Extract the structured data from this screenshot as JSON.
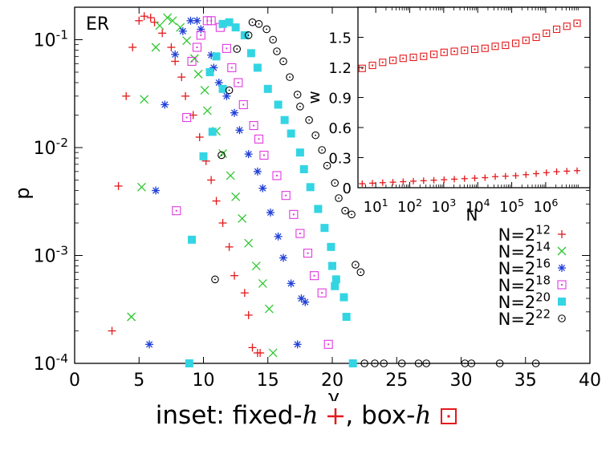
{
  "chart_data": [
    {
      "type": "scatter",
      "title": "ER",
      "xlabel": "γ",
      "ylabel": "p",
      "xlim": [
        0,
        40
      ],
      "ylim": [
        0.0001,
        0.2
      ],
      "y_scale": "log",
      "x_ticks": [
        "0",
        "5",
        "10",
        "15",
        "20",
        "25",
        "30",
        "35",
        "40"
      ],
      "y_ticks": [
        {
          "mantissa": "10",
          "exp": "-1"
        },
        {
          "mantissa": "10",
          "exp": "-2"
        },
        {
          "mantissa": "10",
          "exp": "-3"
        },
        {
          "mantissa": "10",
          "exp": "-4"
        }
      ],
      "legend_position": "bottom-right",
      "series": [
        {
          "name": "N=2^12",
          "label_base": "N=2",
          "label_exp": "12",
          "color": "#e41a1c",
          "marker": "plus",
          "points": [
            [
              2.9,
              0.0002
            ],
            [
              3.4,
              0.0044
            ],
            [
              4.0,
              0.03
            ],
            [
              4.5,
              0.085
            ],
            [
              5.0,
              0.15
            ],
            [
              5.4,
              0.165
            ],
            [
              5.9,
              0.16
            ],
            [
              6.2,
              0.145
            ],
            [
              6.8,
              0.115
            ],
            [
              7.5,
              0.085
            ],
            [
              7.8,
              0.063
            ],
            [
              8.3,
              0.045
            ],
            [
              8.6,
              0.03
            ],
            [
              9.2,
              0.02
            ],
            [
              9.7,
              0.0125
            ],
            [
              10.2,
              0.0075
            ],
            [
              10.6,
              0.005
            ],
            [
              11.0,
              0.0032
            ],
            [
              11.5,
              0.002
            ],
            [
              12.0,
              0.0012
            ],
            [
              12.4,
              0.00065
            ],
            [
              13.2,
              0.00045
            ],
            [
              13.5,
              0.00028
            ],
            [
              13.8,
              0.00014
            ],
            [
              14.2,
              0.000125
            ],
            [
              14.4,
              0.000125
            ]
          ]
        },
        {
          "name": "N=2^14",
          "label_base": "N=2",
          "label_exp": "14",
          "color": "#2ec82e",
          "marker": "cross",
          "points": [
            [
              4.4,
              0.00027
            ],
            [
              5.2,
              0.0043
            ],
            [
              5.4,
              0.028
            ],
            [
              6.3,
              0.085
            ],
            [
              6.6,
              0.135
            ],
            [
              7.2,
              0.16
            ],
            [
              7.6,
              0.15
            ],
            [
              8.2,
              0.13
            ],
            [
              8.7,
              0.098
            ],
            [
              9.3,
              0.067
            ],
            [
              9.6,
              0.048
            ],
            [
              10.1,
              0.034
            ],
            [
              10.3,
              0.022
            ],
            [
              11.0,
              0.0142
            ],
            [
              11.5,
              0.0088
            ],
            [
              12.1,
              0.0055
            ],
            [
              12.5,
              0.0035
            ],
            [
              13.0,
              0.0022
            ],
            [
              13.5,
              0.0013
            ],
            [
              14.1,
              0.0008
            ],
            [
              14.6,
              0.00055
            ],
            [
              15.1,
              0.00032
            ],
            [
              15.4,
              0.000125
            ]
          ]
        },
        {
          "name": "N=2^16",
          "label_base": "N=2",
          "label_exp": "16",
          "color": "#1f3fd8",
          "marker": "star",
          "points": [
            [
              5.8,
              0.00015
            ],
            [
              6.3,
              0.004
            ],
            [
              7.0,
              0.025
            ],
            [
              7.8,
              0.073
            ],
            [
              8.4,
              0.12
            ],
            [
              9.0,
              0.15
            ],
            [
              9.5,
              0.15
            ],
            [
              9.8,
              0.125
            ],
            [
              10.6,
              0.072
            ],
            [
              10.8,
              0.055
            ],
            [
              11.2,
              0.04
            ],
            [
              11.8,
              0.03
            ],
            [
              12.4,
              0.021
            ],
            [
              12.8,
              0.0145
            ],
            [
              13.5,
              0.0087
            ],
            [
              14.2,
              0.006
            ],
            [
              14.6,
              0.0042
            ],
            [
              15.2,
              0.0025
            ],
            [
              15.8,
              0.0015
            ],
            [
              16.2,
              0.00095
            ],
            [
              16.8,
              0.00055
            ],
            [
              17.3,
              0.00015
            ],
            [
              17.6,
              0.0004
            ],
            [
              17.9,
              0.00037
            ]
          ]
        },
        {
          "name": "N=2^18",
          "label_base": "N=2",
          "label_exp": "18",
          "color": "#e03ae0",
          "marker": "box",
          "points": [
            [
              7.9,
              0.0026
            ],
            [
              8.7,
              0.019
            ],
            [
              9.1,
              0.063
            ],
            [
              9.5,
              0.085
            ],
            [
              9.8,
              0.11
            ],
            [
              10.3,
              0.15
            ],
            [
              10.6,
              0.15
            ],
            [
              11.3,
              0.13
            ],
            [
              11.8,
              0.083
            ],
            [
              12.2,
              0.055
            ],
            [
              12.7,
              0.04
            ],
            [
              13.1,
              0.025
            ],
            [
              13.9,
              0.016
            ],
            [
              14.3,
              0.012
            ],
            [
              14.7,
              0.0085
            ],
            [
              15.7,
              0.0055
            ],
            [
              16.4,
              0.0036
            ],
            [
              17.0,
              0.0024
            ],
            [
              17.5,
              0.0016
            ],
            [
              18.1,
              0.00105
            ],
            [
              18.6,
              0.00065
            ],
            [
              19.2,
              0.00045
            ],
            [
              19.7,
              0.00015
            ]
          ]
        },
        {
          "name": "N=2^20",
          "label_base": "N=2",
          "label_exp": "20",
          "color": "#33d5e3",
          "marker": "square",
          "points": [
            [
              8.9,
              0.0001
            ],
            [
              9.1,
              0.0014
            ],
            [
              10.0,
              0.0083
            ],
            [
              10.7,
              0.014
            ],
            [
              11.5,
              0.035
            ],
            [
              10.5,
              0.05
            ],
            [
              11.0,
              0.07
            ],
            [
              11.5,
              0.14
            ],
            [
              12.0,
              0.145
            ],
            [
              12.5,
              0.13
            ],
            [
              13.2,
              0.11
            ],
            [
              13.7,
              0.075
            ],
            [
              14.2,
              0.055
            ],
            [
              15.0,
              0.035
            ],
            [
              15.8,
              0.025
            ],
            [
              16.3,
              0.018
            ],
            [
              16.8,
              0.0135
            ],
            [
              17.5,
              0.009
            ],
            [
              17.8,
              0.0063
            ],
            [
              18.3,
              0.0043
            ],
            [
              18.9,
              0.0027
            ],
            [
              19.4,
              0.0018
            ],
            [
              19.9,
              0.0012
            ],
            [
              20.0,
              0.0008
            ],
            [
              20.3,
              0.0006
            ],
            [
              20.2,
              0.00052
            ],
            [
              20.9,
              0.00041
            ],
            [
              21.1,
              0.00027
            ],
            [
              21.6,
              0.0001
            ]
          ]
        },
        {
          "name": "N=2^22",
          "label_base": "N=2",
          "label_exp": "22",
          "color": "#000000",
          "marker": "circle",
          "points": [
            [
              10.9,
              0.0006
            ],
            [
              11.4,
              0.0085
            ],
            [
              12.0,
              0.034
            ],
            [
              12.6,
              0.082
            ],
            [
              13.5,
              0.11
            ],
            [
              13.8,
              0.145
            ],
            [
              14.3,
              0.14
            ],
            [
              14.9,
              0.125
            ],
            [
              15.4,
              0.1
            ],
            [
              15.7,
              0.078
            ],
            [
              16.2,
              0.063
            ],
            [
              16.7,
              0.045
            ],
            [
              17.3,
              0.031
            ],
            [
              17.5,
              0.024
            ],
            [
              18.2,
              0.018
            ],
            [
              18.7,
              0.013
            ],
            [
              19.2,
              0.0095
            ],
            [
              19.6,
              0.0068
            ],
            [
              20.2,
              0.0047
            ],
            [
              20.5,
              0.0034
            ],
            [
              21.0,
              0.0026
            ],
            [
              21.5,
              0.0024
            ],
            [
              21.8,
              0.00082
            ],
            [
              22.2,
              0.0007
            ],
            [
              22.5,
              0.0001
            ],
            [
              23.3,
              0.0001
            ],
            [
              24.0,
              0.0001
            ],
            [
              25.4,
              0.0001
            ],
            [
              26.7,
              0.0001
            ],
            [
              27.3,
              0.0001
            ],
            [
              30.3,
              0.0001
            ],
            [
              30.8,
              0.0001
            ],
            [
              33.0,
              0.0001
            ],
            [
              35.8,
              0.0001
            ]
          ]
        }
      ]
    },
    {
      "type": "scatter",
      "title": "",
      "xlabel": "N",
      "ylabel": "w",
      "xlim": [
        3,
        20000000
      ],
      "ylim": [
        0,
        1.8
      ],
      "x_scale": "log",
      "y_ticks": [
        "0",
        "0.3",
        "0.6",
        "0.9",
        "1.2",
        "1.5"
      ],
      "x_ticks": [
        {
          "mantissa": "10",
          "exp": "1"
        },
        {
          "mantissa": "10",
          "exp": "2"
        },
        {
          "mantissa": "10",
          "exp": "3"
        },
        {
          "mantissa": "10",
          "exp": "4"
        },
        {
          "mantissa": "10",
          "exp": "5"
        },
        {
          "mantissa": "10",
          "exp": "6"
        }
      ],
      "series": [
        {
          "color": "#e41a1c",
          "marker": "plus",
          "points": [
            [
              4,
              0.04
            ],
            [
              8,
              0.045
            ],
            [
              16,
              0.05
            ],
            [
              32,
              0.055
            ],
            [
              64,
              0.06
            ],
            [
              128,
              0.065
            ],
            [
              256,
              0.07
            ],
            [
              512,
              0.075
            ],
            [
              1024,
              0.08
            ],
            [
              2048,
              0.085
            ],
            [
              4096,
              0.09
            ],
            [
              8192,
              0.095
            ],
            [
              16384,
              0.1
            ],
            [
              32768,
              0.11
            ],
            [
              65536,
              0.115
            ],
            [
              131072,
              0.12
            ],
            [
              262144,
              0.13
            ],
            [
              524288,
              0.14
            ],
            [
              1048576,
              0.15
            ],
            [
              2097152,
              0.16
            ],
            [
              4194304,
              0.165
            ],
            [
              8388608,
              0.17
            ]
          ]
        },
        {
          "color": "#e41a1c",
          "marker": "box",
          "points": [
            [
              4,
              1.19
            ],
            [
              8,
              1.22
            ],
            [
              16,
              1.25
            ],
            [
              32,
              1.27
            ],
            [
              64,
              1.29
            ],
            [
              128,
              1.3
            ],
            [
              256,
              1.31
            ],
            [
              512,
              1.33
            ],
            [
              1024,
              1.35
            ],
            [
              2048,
              1.36
            ],
            [
              4096,
              1.37
            ],
            [
              8192,
              1.38
            ],
            [
              16384,
              1.39
            ],
            [
              32768,
              1.41
            ],
            [
              65536,
              1.42
            ],
            [
              131072,
              1.44
            ],
            [
              262144,
              1.47
            ],
            [
              524288,
              1.5
            ],
            [
              1048576,
              1.54
            ],
            [
              2097152,
              1.58
            ],
            [
              4194304,
              1.61
            ],
            [
              8388608,
              1.64
            ]
          ]
        }
      ]
    }
  ],
  "caption": {
    "prefix": "inset:  fixed-",
    "h1": "h",
    "middle": ",  box-",
    "h2": "h"
  }
}
